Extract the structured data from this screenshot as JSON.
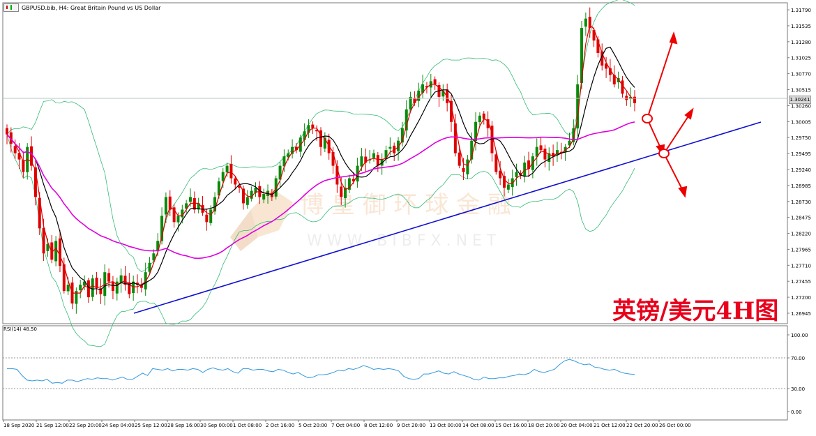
{
  "window": {
    "title": "GBPUSD.bib, H4:  Great Britain Pound vs US Dollar",
    "current_price": "1.30241"
  },
  "watermark": {
    "cn": "博 皇 御 环 球 金 融",
    "en": "W W W . B I B F X . N E T"
  },
  "stamp": "英镑/美元4H图",
  "price_axis": [
    "1.31790",
    "1.31535",
    "1.31280",
    "1.31025",
    "1.30770",
    "1.30515",
    "1.30260",
    "1.30005",
    "1.29750",
    "1.29495",
    "1.29240",
    "1.28985",
    "1.28730",
    "1.28475",
    "1.28220",
    "1.27965",
    "1.27710",
    "1.27455",
    "1.27200",
    "1.26945"
  ],
  "time_axis": [
    "18 Sep 2020",
    "21 Sep 12:00",
    "22 Sep 20:00",
    "24 Sep 04:00",
    "25 Sep 12:00",
    "28 Sep 16:00",
    "30 Sep 00:00",
    "1 Oct 08:00",
    "2 Oct 16:00",
    "5 Oct 20:00",
    "7 Oct 04:00",
    "8 Oct 12:00",
    "9 Oct 20:00",
    "13 Oct 00:00",
    "14 Oct 08:00",
    "15 Oct 16:00",
    "18 Oct 20:00",
    "20 Oct 04:00",
    "21 Oct 12:00",
    "22 Oct 20:00",
    "26 Oct 00:00"
  ],
  "rsi": {
    "label": "RSI(14) 48.50",
    "axis": [
      "100.00",
      "70.00",
      "30.00",
      "0.00"
    ]
  },
  "colors": {
    "bull": "#0a8a0a",
    "bear": "#e00000",
    "ma_fast": "#e00000",
    "ma_mid": "#000000",
    "ma_slow": "#e000e0",
    "bollinger": "#33bb77",
    "trendline": "#1010d0",
    "rsi_line": "#3399dd",
    "arrow": "#ee0000"
  },
  "chart_data": {
    "type": "candlestick",
    "symbol": "GBPUSD.bib",
    "timeframe": "H4",
    "ylim": [
      1.268,
      1.3188
    ],
    "rsi_ylim": [
      0,
      100
    ],
    "closes": [
      1.298,
      1.2965,
      1.295,
      1.294,
      1.292,
      1.296,
      1.293,
      1.288,
      1.283,
      1.279,
      1.2805,
      1.278,
      1.281,
      1.277,
      1.273,
      1.274,
      1.271,
      1.273,
      1.274,
      1.2745,
      1.272,
      1.275,
      1.2735,
      1.2725,
      1.276,
      1.2745,
      1.273,
      1.2745,
      1.2755,
      1.274,
      1.2725,
      1.2745,
      1.274,
      1.2735,
      1.276,
      1.2775,
      1.279,
      1.281,
      1.285,
      1.288,
      1.286,
      1.284,
      1.285,
      1.286,
      1.287,
      1.288,
      1.286,
      1.287,
      1.2855,
      1.284,
      1.286,
      1.288,
      1.2905,
      1.292,
      1.293,
      1.291,
      1.29,
      1.2895,
      1.287,
      1.288,
      1.289,
      1.2895,
      1.288,
      1.2885,
      1.289,
      1.288,
      1.291,
      1.293,
      1.2945,
      1.295,
      1.296,
      1.2955,
      1.2975,
      1.2985,
      1.2995,
      1.299,
      1.2985,
      1.296,
      1.2975,
      1.295,
      1.293,
      1.29,
      1.288,
      1.2895,
      1.291,
      1.2905,
      1.293,
      1.2945,
      1.2935,
      1.294,
      1.295,
      1.293,
      1.294,
      1.2955,
      1.296,
      1.295,
      1.297,
      1.299,
      1.302,
      1.304,
      1.303,
      1.305,
      1.306,
      1.3055,
      1.3065,
      1.306,
      1.304,
      1.305,
      1.303,
      1.3,
      1.295,
      1.293,
      1.292,
      1.294,
      1.297,
      1.3,
      1.301,
      1.3005,
      1.299,
      1.295,
      1.292,
      1.291,
      1.2895,
      1.29,
      1.291,
      1.292,
      1.2915,
      1.2935,
      1.2925,
      1.2945,
      1.296,
      1.2955,
      1.294,
      1.295,
      1.2945,
      1.2955,
      1.295,
      1.296,
      1.297,
      1.299,
      1.306,
      1.315,
      1.3165,
      1.315,
      1.313,
      1.311,
      1.309,
      1.3085,
      1.3075,
      1.306,
      1.307,
      1.3045,
      1.3035,
      1.304,
      1.303
    ],
    "rsi": [
      56,
      56,
      55,
      47,
      41,
      40,
      41,
      40,
      42,
      37,
      38,
      37,
      41,
      41,
      39,
      41,
      43,
      42,
      44,
      43,
      43,
      41,
      43,
      45,
      42,
      42,
      46,
      50,
      47,
      56,
      55,
      54,
      56,
      53,
      55,
      55,
      54,
      56,
      55,
      51,
      55,
      57,
      55,
      54,
      56,
      52,
      50,
      56,
      56,
      54,
      55,
      55,
      53,
      52,
      55,
      54,
      51,
      49,
      51,
      47,
      44,
      45,
      48,
      48,
      49,
      51,
      54,
      53,
      56,
      55,
      57,
      60,
      58,
      55,
      56,
      55,
      56,
      55,
      53,
      46,
      43,
      42,
      43,
      49,
      49,
      51,
      53,
      50,
      49,
      52,
      49,
      47,
      45,
      42,
      41,
      45,
      43,
      43,
      44,
      44,
      46,
      47,
      49,
      48,
      50,
      55,
      52,
      51,
      53,
      55,
      61,
      66,
      68,
      66,
      63,
      61,
      62,
      58,
      57,
      55,
      54,
      55,
      52,
      50,
      49,
      48.5
    ]
  }
}
